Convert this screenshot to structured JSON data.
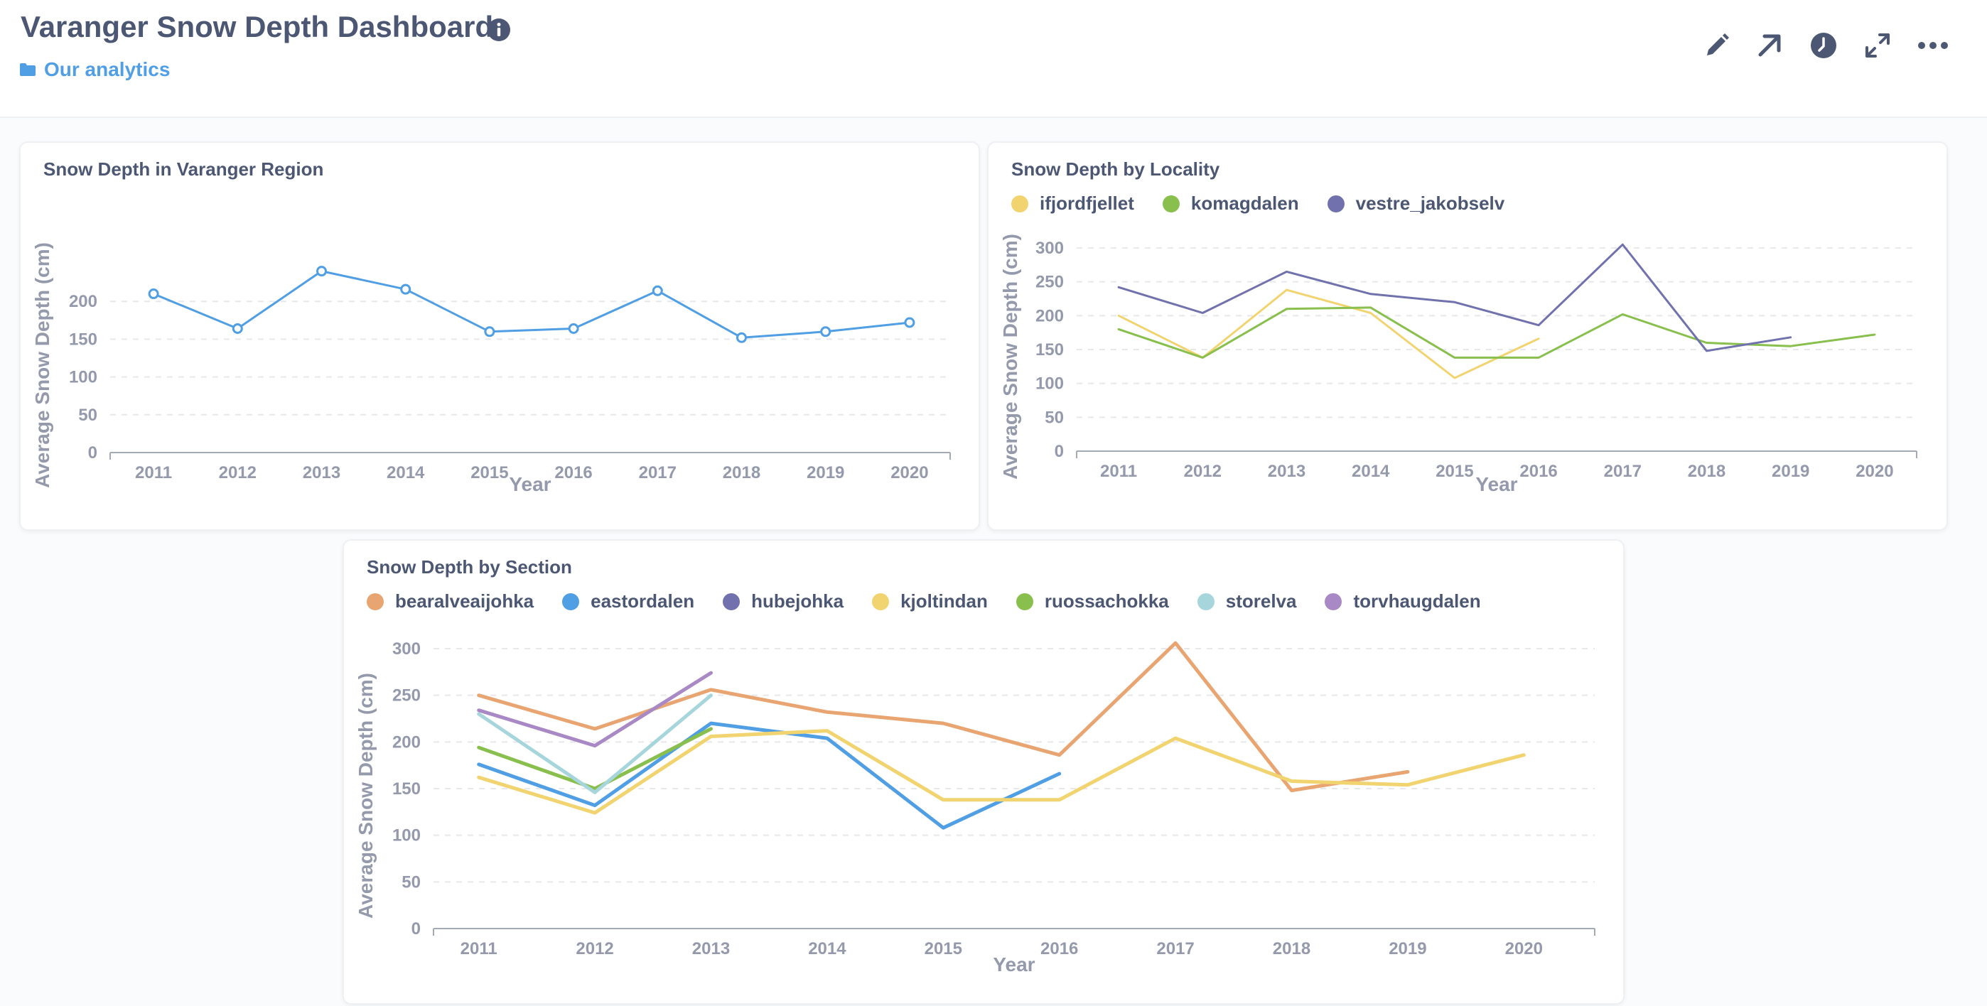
{
  "header": {
    "title": "Varanger Snow Depth Dashboard",
    "collection": "Our analytics",
    "actions": [
      {
        "name": "edit-button",
        "icon": "pencil-icon"
      },
      {
        "name": "share-button",
        "icon": "arrow-up-right-icon"
      },
      {
        "name": "history-button",
        "icon": "clock-icon"
      },
      {
        "name": "fullscreen-button",
        "icon": "expand-icon"
      },
      {
        "name": "more-button",
        "icon": "ellipsis-icon"
      }
    ]
  },
  "cards": {
    "region": {
      "title": "Snow Depth in Varanger Region"
    },
    "locality": {
      "title": "Snow Depth by Locality"
    },
    "section": {
      "title": "Snow Depth by Section"
    }
  },
  "chart_data": [
    {
      "id": "region",
      "type": "line",
      "title": "Snow Depth in Varanger Region",
      "xlabel": "Year",
      "ylabel": "Average Snow Depth (cm)",
      "ylim": [
        0,
        250
      ],
      "yticks": [
        0,
        50,
        100,
        150,
        200
      ],
      "x": [
        "2011",
        "2012",
        "2013",
        "2014",
        "2015",
        "2016",
        "2017",
        "2018",
        "2019",
        "2020"
      ],
      "grid": true,
      "markers": true,
      "series": [
        {
          "color": "#509ee3",
          "values": [
            210,
            164,
            240,
            216,
            160,
            164,
            214,
            152,
            160,
            172
          ]
        }
      ]
    },
    {
      "id": "locality",
      "type": "line",
      "title": "Snow Depth by Locality",
      "xlabel": "Year",
      "ylabel": "Average Snow Depth (cm)",
      "ylim": [
        0,
        300
      ],
      "yticks": [
        0,
        50,
        100,
        150,
        200,
        250,
        300
      ],
      "x": [
        "2011",
        "2012",
        "2013",
        "2014",
        "2015",
        "2016",
        "2017",
        "2018",
        "2019",
        "2020"
      ],
      "grid": true,
      "legend": "top-left",
      "series": [
        {
          "name": "ifjordfjellet",
          "color": "#f1d470",
          "values": [
            200,
            138,
            238,
            204,
            108,
            166,
            null,
            null,
            null,
            null
          ]
        },
        {
          "name": "komagdalen",
          "color": "#88bf4d",
          "values": [
            180,
            138,
            210,
            212,
            138,
            138,
            202,
            160,
            155,
            172
          ]
        },
        {
          "name": "vestre_jakobselv",
          "color": "#7172ad",
          "values": [
            242,
            204,
            265,
            232,
            220,
            186,
            305,
            148,
            168,
            null
          ]
        }
      ]
    },
    {
      "id": "section",
      "type": "line",
      "title": "Snow Depth by Section",
      "xlabel": "Year",
      "ylabel": "Average Snow Depth (cm)",
      "ylim": [
        0,
        300
      ],
      "yticks": [
        0,
        50,
        100,
        150,
        200,
        250,
        300
      ],
      "x": [
        "2011",
        "2012",
        "2013",
        "2014",
        "2015",
        "2016",
        "2017",
        "2018",
        "2019",
        "2020"
      ],
      "grid": true,
      "legend": "top-left",
      "series": [
        {
          "name": "bearalveaijohka",
          "color": "#e9a571",
          "values": [
            250,
            214,
            256,
            232,
            220,
            186,
            306,
            148,
            168,
            null
          ]
        },
        {
          "name": "eastordalen",
          "color": "#509ee3",
          "values": [
            176,
            132,
            220,
            204,
            108,
            166,
            null,
            null,
            null,
            null
          ]
        },
        {
          "name": "hubejohka",
          "color": "#7172ad",
          "values": [
            null,
            null,
            null,
            null,
            null,
            null,
            null,
            null,
            null,
            null
          ]
        },
        {
          "name": "kjoltindan",
          "color": "#f1d470",
          "values": [
            162,
            124,
            206,
            212,
            138,
            138,
            204,
            158,
            154,
            186
          ]
        },
        {
          "name": "ruossachokka",
          "color": "#88bf4d",
          "values": [
            194,
            150,
            214,
            null,
            null,
            null,
            null,
            null,
            null,
            null
          ]
        },
        {
          "name": "storelva",
          "color": "#a6d5dc",
          "values": [
            230,
            146,
            250,
            null,
            null,
            null,
            null,
            null,
            null,
            null
          ]
        },
        {
          "name": "torvhaugdalen",
          "color": "#a989c5",
          "values": [
            234,
            196,
            274,
            null,
            null,
            null,
            null,
            null,
            null,
            null
          ]
        }
      ]
    }
  ]
}
